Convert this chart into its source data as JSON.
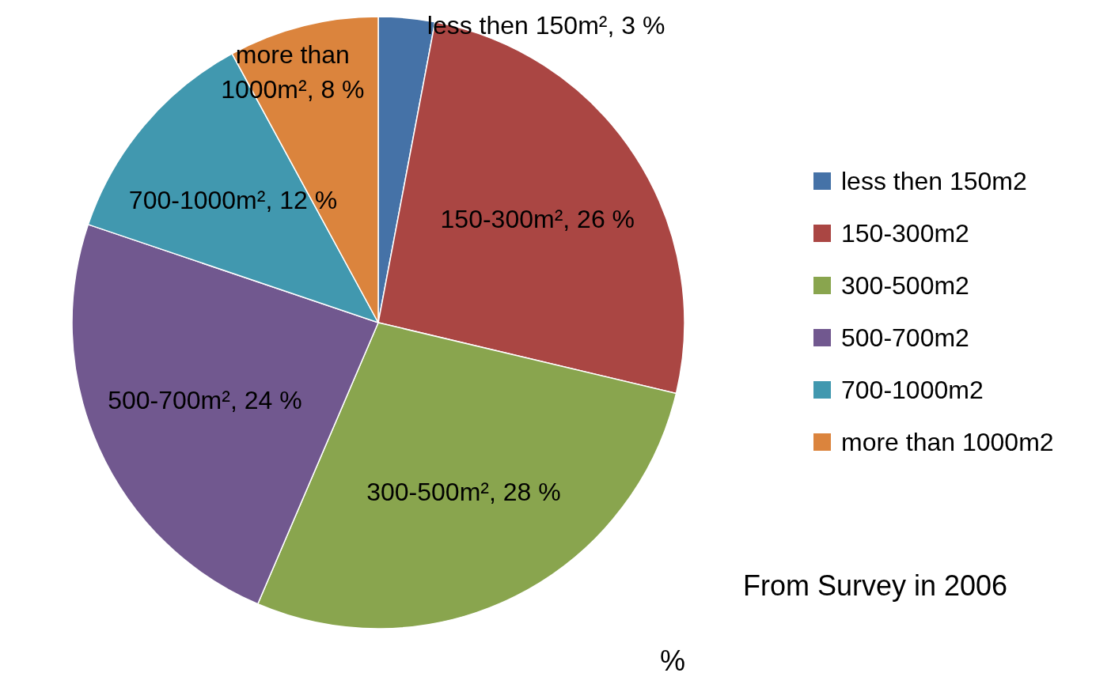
{
  "chart_data": {
    "type": "pie",
    "categories": [
      "less then 150m2",
      "150-300m2",
      "300-500m2",
      "500-700m2",
      "700-1000m2",
      "more than 1000m2"
    ],
    "values": [
      3,
      26,
      28,
      24,
      12,
      8
    ],
    "colors": [
      "#4572a7",
      "#aa4643",
      "#89a54e",
      "#71588f",
      "#4198af",
      "#db843d"
    ],
    "value_labels": [
      "less then 150m², 3 %",
      "150-300m², 26 %",
      "300-500m², 28 %",
      "500-700m², 24 %",
      "700-1000m², 12 %",
      "more than 1000m², 8 %"
    ],
    "legend": "right",
    "annotations": [
      "From Survey in 2006",
      "%"
    ]
  }
}
